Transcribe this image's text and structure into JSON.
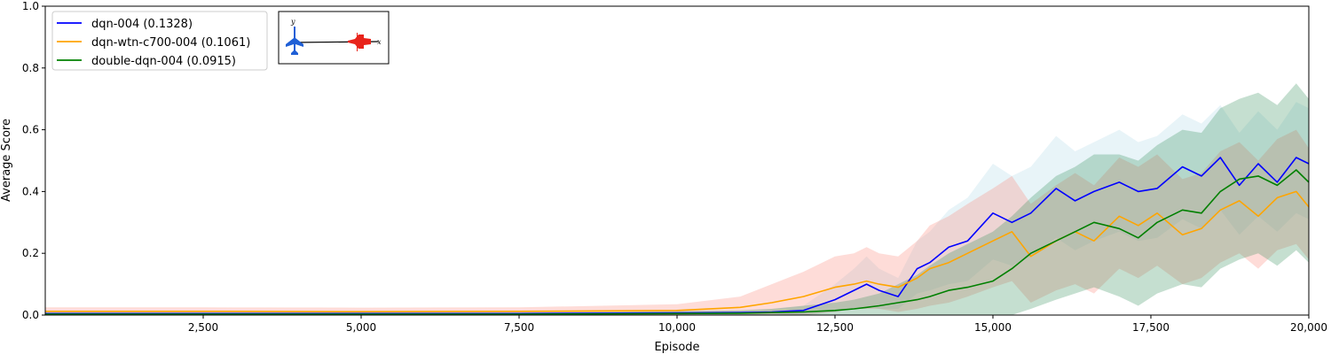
{
  "chart_data": {
    "type": "line",
    "xlabel": "Episode",
    "ylabel": "Average Score",
    "xlim": [
      0,
      20000
    ],
    "ylim": [
      0,
      1.0
    ],
    "x_ticks": [
      2500,
      5000,
      7500,
      10000,
      12500,
      15000,
      17500,
      20000
    ],
    "x_tick_labels": [
      "2,500",
      "5,000",
      "7,500",
      "10,000",
      "12,500",
      "15,000",
      "17,500",
      "20,000"
    ],
    "y_ticks": [
      0.0,
      0.2,
      0.4,
      0.6,
      0.8,
      1.0
    ],
    "y_tick_labels": [
      "0.0",
      "0.2",
      "0.4",
      "0.6",
      "0.8",
      "1.0"
    ],
    "grid": false,
    "legend_position": "top-left",
    "series": [
      {
        "name": "dqn-004 (0.1328)",
        "color": "#0000ff",
        "band_color": "#add8e6",
        "x": [
          0,
          2500,
          5000,
          7500,
          10000,
          11000,
          11500,
          12000,
          12500,
          12800,
          13000,
          13200,
          13500,
          13800,
          14000,
          14300,
          14600,
          15000,
          15300,
          15600,
          16000,
          16300,
          16600,
          17000,
          17300,
          17600,
          18000,
          18300,
          18600,
          18900,
          19200,
          19500,
          19800,
          20000
        ],
        "y": [
          0.005,
          0.005,
          0.005,
          0.005,
          0.007,
          0.008,
          0.01,
          0.015,
          0.05,
          0.08,
          0.1,
          0.08,
          0.06,
          0.15,
          0.17,
          0.22,
          0.24,
          0.33,
          0.3,
          0.33,
          0.41,
          0.37,
          0.4,
          0.43,
          0.4,
          0.41,
          0.48,
          0.45,
          0.51,
          0.42,
          0.49,
          0.43,
          0.51,
          0.49
        ],
        "y_lower": [
          0.0,
          0.0,
          0.0,
          0.0,
          0.0,
          0.0,
          0.0,
          0.0,
          0.01,
          0.02,
          0.03,
          0.02,
          0.02,
          0.07,
          0.08,
          0.1,
          0.11,
          0.18,
          0.16,
          0.19,
          0.25,
          0.21,
          0.24,
          0.27,
          0.24,
          0.25,
          0.31,
          0.28,
          0.34,
          0.26,
          0.32,
          0.27,
          0.33,
          0.31
        ],
        "y_upper": [
          0.01,
          0.01,
          0.01,
          0.01,
          0.014,
          0.016,
          0.02,
          0.03,
          0.1,
          0.15,
          0.19,
          0.15,
          0.12,
          0.24,
          0.27,
          0.34,
          0.38,
          0.49,
          0.45,
          0.48,
          0.58,
          0.53,
          0.56,
          0.6,
          0.56,
          0.58,
          0.65,
          0.62,
          0.68,
          0.59,
          0.66,
          0.6,
          0.69,
          0.67
        ]
      },
      {
        "name": "dqn-wtn-c700-004 (0.1061)",
        "color": "#ffa500",
        "band_color": "#fa8072",
        "x": [
          0,
          2500,
          5000,
          7500,
          10000,
          11000,
          11500,
          12000,
          12500,
          12800,
          13000,
          13200,
          13500,
          13800,
          14000,
          14300,
          14600,
          15000,
          15300,
          15600,
          16000,
          16300,
          16600,
          17000,
          17300,
          17600,
          18000,
          18300,
          18600,
          18900,
          19200,
          19500,
          19800,
          20000
        ],
        "y": [
          0.012,
          0.012,
          0.011,
          0.012,
          0.015,
          0.025,
          0.04,
          0.06,
          0.09,
          0.1,
          0.11,
          0.1,
          0.09,
          0.12,
          0.15,
          0.17,
          0.2,
          0.24,
          0.27,
          0.19,
          0.24,
          0.27,
          0.24,
          0.32,
          0.29,
          0.33,
          0.26,
          0.28,
          0.34,
          0.37,
          0.32,
          0.38,
          0.4,
          0.35
        ],
        "y_lower": [
          0.0,
          0.0,
          0.0,
          0.0,
          0.0,
          0.0,
          0.0,
          0.0,
          0.01,
          0.02,
          0.02,
          0.02,
          0.01,
          0.02,
          0.03,
          0.04,
          0.06,
          0.09,
          0.11,
          0.04,
          0.08,
          0.1,
          0.07,
          0.15,
          0.12,
          0.16,
          0.1,
          0.12,
          0.17,
          0.2,
          0.15,
          0.21,
          0.23,
          0.18
        ],
        "y_upper": [
          0.025,
          0.025,
          0.024,
          0.025,
          0.035,
          0.06,
          0.1,
          0.14,
          0.19,
          0.2,
          0.22,
          0.2,
          0.19,
          0.24,
          0.29,
          0.32,
          0.36,
          0.41,
          0.45,
          0.36,
          0.42,
          0.46,
          0.42,
          0.51,
          0.48,
          0.52,
          0.44,
          0.46,
          0.53,
          0.56,
          0.5,
          0.57,
          0.6,
          0.54
        ]
      },
      {
        "name": "double-dqn-004 (0.0915)",
        "color": "#008000",
        "band_color": "#2e8b57",
        "x": [
          0,
          2500,
          5000,
          7500,
          10000,
          11000,
          11500,
          12000,
          12500,
          12800,
          13000,
          13200,
          13500,
          13800,
          14000,
          14300,
          14600,
          15000,
          15300,
          15600,
          16000,
          16300,
          16600,
          17000,
          17300,
          17600,
          18000,
          18300,
          18600,
          18900,
          19200,
          19500,
          19800,
          20000
        ],
        "y": [
          0.003,
          0.003,
          0.003,
          0.003,
          0.005,
          0.006,
          0.008,
          0.01,
          0.015,
          0.02,
          0.025,
          0.03,
          0.04,
          0.05,
          0.06,
          0.08,
          0.09,
          0.11,
          0.15,
          0.2,
          0.24,
          0.27,
          0.3,
          0.28,
          0.25,
          0.3,
          0.34,
          0.33,
          0.4,
          0.44,
          0.45,
          0.42,
          0.47,
          0.43
        ],
        "y_lower": [
          0.0,
          0.0,
          0.0,
          0.0,
          0.0,
          0.0,
          0.0,
          0.0,
          0.0,
          0.0,
          0.0,
          0.0,
          0.0,
          0.0,
          0.0,
          0.0,
          0.0,
          0.0,
          0.0,
          0.02,
          0.05,
          0.07,
          0.09,
          0.06,
          0.03,
          0.07,
          0.1,
          0.09,
          0.15,
          0.18,
          0.2,
          0.16,
          0.21,
          0.17
        ],
        "y_upper": [
          0.008,
          0.008,
          0.008,
          0.008,
          0.012,
          0.015,
          0.02,
          0.03,
          0.04,
          0.05,
          0.06,
          0.07,
          0.1,
          0.13,
          0.16,
          0.2,
          0.23,
          0.27,
          0.32,
          0.38,
          0.45,
          0.48,
          0.52,
          0.52,
          0.5,
          0.55,
          0.6,
          0.59,
          0.67,
          0.7,
          0.72,
          0.68,
          0.75,
          0.7
        ]
      }
    ]
  },
  "inset": {
    "y_axis_label": "y",
    "x_axis_label": "x",
    "agent_color": "#1f5fd6",
    "opponent_color": "#e8231a"
  }
}
